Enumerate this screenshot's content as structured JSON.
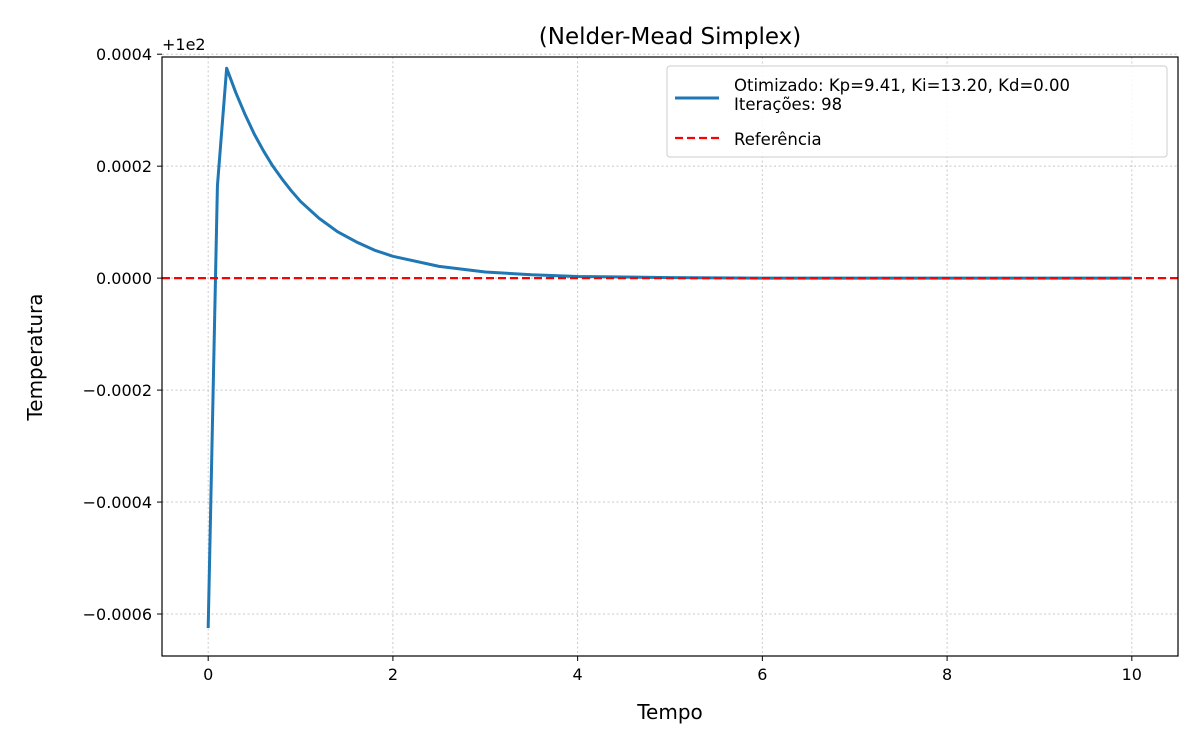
{
  "chart_data": {
    "type": "line",
    "title": "(Nelder-Mead Simplex)",
    "xlabel": "Tempo",
    "ylabel": "Temperatura",
    "offset_text": "+1e2",
    "xlim": [
      -0.5,
      10.5
    ],
    "ylim": [
      -0.000675,
      0.000395
    ],
    "xticks": [
      0,
      2,
      4,
      6,
      8,
      10
    ],
    "xtick_labels": [
      "0",
      "2",
      "4",
      "6",
      "8",
      "10"
    ],
    "yticks": [
      -0.0006,
      -0.0004,
      -0.0002,
      0.0,
      0.0002,
      0.0004
    ],
    "ytick_labels": [
      "−0.0006",
      "−0.0004",
      "−0.0002",
      "0.0000",
      "0.0002",
      "0.0004"
    ],
    "grid": true,
    "legend_position": "top-right",
    "series": [
      {
        "name": "Otimizado: Kp=9.41, Ki=13.20, Kd=0.00\nIterações: 98",
        "color": "#1f77b4",
        "style": "solid",
        "x": [
          0,
          0.1,
          0.2,
          0.3,
          0.4,
          0.5,
          0.6,
          0.7,
          0.8,
          0.9,
          1.0,
          1.2,
          1.4,
          1.6,
          1.8,
          2.0,
          2.5,
          3.0,
          3.5,
          4.0,
          5.0,
          6.0,
          7.0,
          8.0,
          9.0,
          10.0
        ],
        "y": [
          -0.000625,
          0.000165,
          0.000375,
          0.000331,
          0.000292,
          0.000257,
          0.000227,
          0.0002,
          0.000177,
          0.000156,
          0.000137,
          0.000107,
          8.3e-05,
          6.5e-05,
          5e-05,
          3.9e-05,
          2.1e-05,
          1.1e-05,
          6e-06,
          3e-06,
          1e-06,
          0.0,
          0.0,
          0.0,
          0.0,
          0.0
        ]
      },
      {
        "name": "Referência",
        "color": "#ff0000",
        "style": "dashed",
        "x": [
          -0.5,
          10.5
        ],
        "y": [
          0.0,
          0.0
        ]
      }
    ]
  }
}
